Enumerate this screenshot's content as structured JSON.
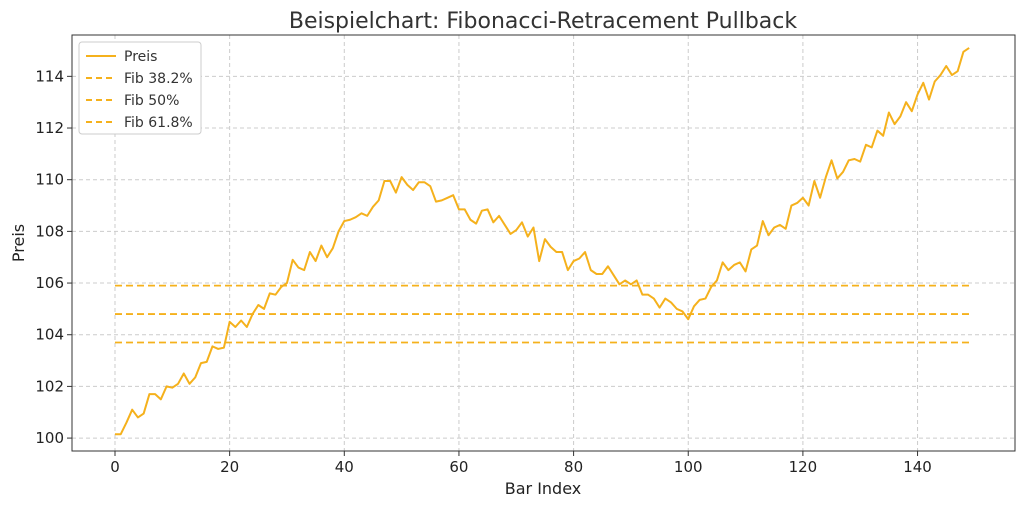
{
  "chart_data": {
    "type": "line",
    "title": "Beispielchart: Fibonacci-Retracement Pullback",
    "xlabel": "Bar Index",
    "ylabel": "Preis",
    "xlim": [
      -7.5,
      157
    ],
    "ylim": [
      99.5,
      115.6
    ],
    "xticks": [
      0,
      20,
      40,
      60,
      80,
      100,
      120,
      140
    ],
    "yticks": [
      100,
      102,
      104,
      106,
      108,
      110,
      112,
      114
    ],
    "grid": true,
    "legend_position": "top-left",
    "colors": {
      "series": "#f5b11c"
    },
    "series": [
      {
        "name": "Preis",
        "style": "solid",
        "x": [
          0,
          1,
          2,
          3,
          4,
          5,
          6,
          7,
          8,
          9,
          10,
          11,
          12,
          13,
          14,
          15,
          16,
          17,
          18,
          19,
          20,
          21,
          22,
          23,
          24,
          25,
          26,
          27,
          28,
          29,
          30,
          31,
          32,
          33,
          34,
          35,
          36,
          37,
          38,
          39,
          40,
          41,
          42,
          43,
          44,
          45,
          46,
          47,
          48,
          49,
          50,
          51,
          52,
          53,
          54,
          55,
          56,
          57,
          58,
          59,
          60,
          61,
          62,
          63,
          64,
          65,
          66,
          67,
          68,
          69,
          70,
          71,
          72,
          73,
          74,
          75,
          76,
          77,
          78,
          79,
          80,
          81,
          82,
          83,
          84,
          85,
          86,
          87,
          88,
          89,
          90,
          91,
          92,
          93,
          94,
          95,
          96,
          97,
          98,
          99,
          100,
          101,
          102,
          103,
          104,
          105,
          106,
          107,
          108,
          109,
          110,
          111,
          112,
          113,
          114,
          115,
          116,
          117,
          118,
          119,
          120,
          121,
          122,
          123,
          124,
          125,
          126,
          127,
          128,
          129,
          130,
          131,
          132,
          133,
          134,
          135,
          136,
          137,
          138,
          139,
          140,
          141,
          142,
          143,
          144,
          145,
          146,
          147,
          148,
          149
        ],
        "values": [
          100.15,
          100.15,
          100.6,
          101.1,
          100.8,
          100.95,
          101.7,
          101.7,
          101.5,
          102.0,
          101.95,
          102.1,
          102.5,
          102.1,
          102.35,
          102.9,
          102.95,
          103.55,
          103.45,
          103.5,
          104.5,
          104.3,
          104.55,
          104.3,
          104.8,
          105.15,
          105.0,
          105.6,
          105.55,
          105.85,
          106.0,
          106.9,
          106.6,
          106.5,
          107.2,
          106.85,
          107.45,
          107.0,
          107.35,
          108.0,
          108.4,
          108.45,
          108.55,
          108.7,
          108.6,
          108.95,
          109.2,
          109.95,
          109.95,
          109.5,
          110.1,
          109.8,
          109.6,
          109.9,
          109.9,
          109.75,
          109.15,
          109.2,
          109.3,
          109.4,
          108.85,
          108.85,
          108.45,
          108.3,
          108.8,
          108.85,
          108.35,
          108.6,
          108.25,
          107.9,
          108.05,
          108.35,
          107.8,
          108.15,
          106.85,
          107.7,
          107.4,
          107.2,
          107.2,
          106.5,
          106.85,
          106.95,
          107.2,
          106.5,
          106.35,
          106.35,
          106.65,
          106.3,
          105.95,
          106.1,
          105.95,
          106.1,
          105.55,
          105.55,
          105.4,
          105.05,
          105.4,
          105.25,
          105.0,
          104.9,
          104.6,
          105.1,
          105.35,
          105.4,
          105.85,
          106.1,
          106.8,
          106.5,
          106.7,
          106.8,
          106.45,
          107.3,
          107.45,
          108.4,
          107.85,
          108.15,
          108.25,
          108.1,
          109.0,
          109.1,
          109.3,
          109.0,
          109.95,
          109.3,
          110.1,
          110.75,
          110.05,
          110.3,
          110.75,
          110.8,
          110.7,
          111.35,
          111.25,
          111.9,
          111.7,
          112.6,
          112.15,
          112.45,
          113.0,
          112.65,
          113.3,
          113.75,
          113.1,
          113.8,
          114.05,
          114.4,
          114.05,
          114.2,
          114.95,
          115.1
        ]
      },
      {
        "name": "Fib 38.2%",
        "style": "dashed",
        "x": [
          0,
          149
        ],
        "values": [
          105.9,
          105.9
        ]
      },
      {
        "name": "Fib 50%",
        "style": "dashed",
        "x": [
          0,
          149
        ],
        "values": [
          104.8,
          104.8
        ]
      },
      {
        "name": "Fib 61.8%",
        "style": "dashed",
        "x": [
          0,
          149
        ],
        "values": [
          103.7,
          103.7
        ]
      }
    ]
  }
}
